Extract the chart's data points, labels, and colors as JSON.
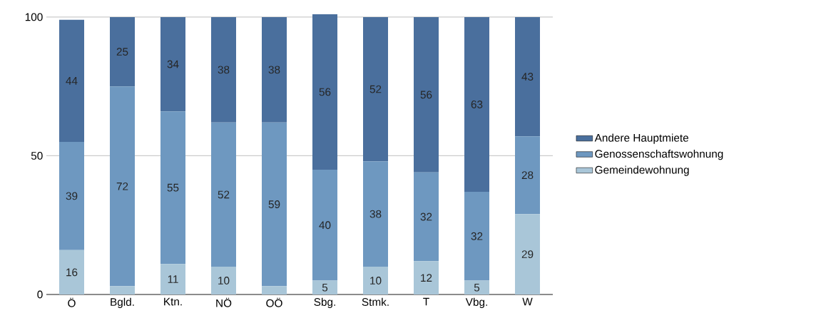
{
  "chart_data": {
    "type": "bar",
    "stacked": true,
    "categories": [
      "Ö",
      "Bgld.",
      "Ktn.",
      "NÖ",
      "OÖ",
      "Sbg.",
      "Stmk.",
      "T",
      "Vbg.",
      "W"
    ],
    "series": [
      {
        "name": "Gemeindewohnung",
        "color": "#a9c6d8",
        "values": [
          16,
          3,
          11,
          10,
          3,
          5,
          10,
          12,
          5,
          29
        ],
        "value_labels": [
          "16",
          null,
          "11",
          "10",
          null,
          "5",
          "10",
          "12",
          "5",
          "29"
        ]
      },
      {
        "name": "Genossenschaftswohnung",
        "color": "#6e98c0",
        "values": [
          39,
          72,
          55,
          52,
          59,
          40,
          38,
          32,
          32,
          28
        ],
        "value_labels": [
          "39",
          "72",
          "55",
          "52",
          "59",
          "40",
          "38",
          "32",
          "32",
          "28"
        ]
      },
      {
        "name": "Andere Hauptmiete",
        "color": "#4a6f9d",
        "values": [
          44,
          25,
          34,
          38,
          38,
          56,
          52,
          56,
          63,
          43
        ],
        "value_labels": [
          "44",
          "25",
          "34",
          "38",
          "38",
          "56",
          "52",
          "56",
          "63",
          "43"
        ]
      }
    ],
    "ylim": [
      0,
      101
    ],
    "yticks": [
      0,
      50,
      100
    ],
    "grid": "y",
    "legend": "right"
  }
}
